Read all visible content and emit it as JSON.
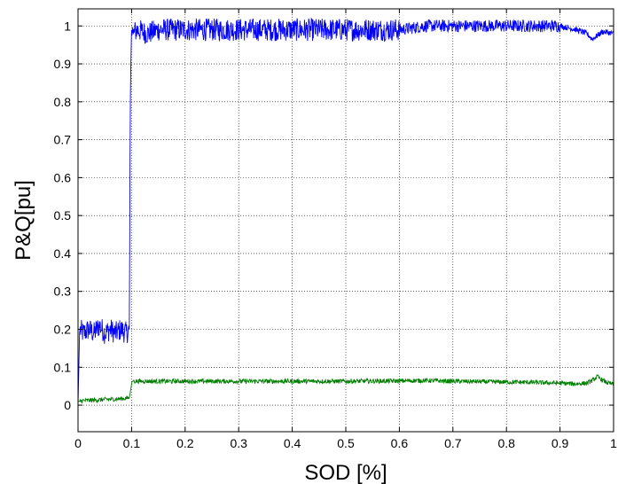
{
  "chart_data": {
    "type": "line",
    "title": "",
    "xlabel": "SOD [%]",
    "ylabel": "P&Q[pu]",
    "xlim": [
      0,
      1
    ],
    "ylim": [
      -0.07,
      1.045
    ],
    "grid": true,
    "legend": "none",
    "xticks": [
      "0",
      "0.1",
      "0.2",
      "0.3",
      "0.4",
      "0.5",
      "0.6",
      "0.7",
      "0.8",
      "0.9",
      "1"
    ],
    "yticks": [
      "0",
      "0.1",
      "0.2",
      "0.3",
      "0.4",
      "0.5",
      "0.6",
      "0.7",
      "0.8",
      "0.9",
      "1"
    ],
    "series": [
      {
        "color": "#0000ff",
        "x": [
          0,
          0.003,
          0.01,
          0.02,
          0.03,
          0.04,
          0.05,
          0.06,
          0.07,
          0.08,
          0.09,
          0.096,
          0.097,
          0.098,
          0.099,
          0.1,
          0.101,
          0.102,
          0.103,
          0.11,
          0.13,
          0.15,
          0.2,
          0.25,
          0.3,
          0.35,
          0.4,
          0.45,
          0.5,
          0.55,
          0.6,
          0.65,
          0.7,
          0.75,
          0.8,
          0.85,
          0.9,
          0.93,
          0.95,
          0.96,
          0.97,
          0.98,
          1.0
        ],
        "y": [
          0.0,
          0.2,
          0.19,
          0.2,
          0.19,
          0.21,
          0.19,
          0.2,
          0.19,
          0.2,
          0.19,
          0.2,
          0.62,
          0.85,
          0.92,
          0.99,
          0.97,
          1.0,
          0.98,
          0.99,
          0.98,
          0.99,
          0.99,
          0.99,
          0.99,
          0.99,
          0.99,
          0.99,
          0.99,
          0.99,
          0.99,
          1.0,
          1.0,
          1.0,
          1.0,
          1.0,
          1.0,
          0.99,
          0.98,
          0.965,
          0.975,
          0.985,
          0.98
        ],
        "noise_amplitude": 0.03
      },
      {
        "color": "#007f00",
        "x": [
          0,
          0.01,
          0.03,
          0.05,
          0.07,
          0.09,
          0.096,
          0.1,
          0.101,
          0.11,
          0.15,
          0.2,
          0.3,
          0.4,
          0.5,
          0.6,
          0.65,
          0.7,
          0.75,
          0.8,
          0.85,
          0.9,
          0.93,
          0.95,
          0.96,
          0.97,
          0.98,
          0.99,
          1.0
        ],
        "y": [
          0.01,
          0.012,
          0.013,
          0.015,
          0.016,
          0.018,
          0.02,
          0.055,
          0.063,
          0.063,
          0.063,
          0.063,
          0.063,
          0.063,
          0.063,
          0.064,
          0.065,
          0.063,
          0.062,
          0.061,
          0.06,
          0.058,
          0.056,
          0.058,
          0.065,
          0.075,
          0.065,
          0.058,
          0.055
        ],
        "noise_amplitude": 0.006
      }
    ]
  }
}
